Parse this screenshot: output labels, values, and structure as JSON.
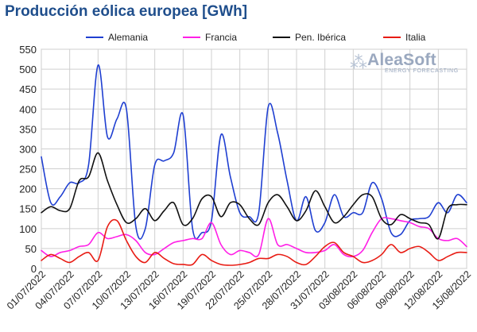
{
  "chart_data": {
    "type": "line",
    "title": "Producción eólica europea [GWh]",
    "ylim": [
      0,
      550
    ],
    "yticks": [
      0,
      50,
      100,
      150,
      200,
      250,
      300,
      350,
      400,
      450,
      500,
      550
    ],
    "x": [
      "01/07/2022",
      "02/07/2022",
      "03/07/2022",
      "04/07/2022",
      "05/07/2022",
      "06/07/2022",
      "07/07/2022",
      "08/07/2022",
      "09/07/2022",
      "10/07/2022",
      "11/07/2022",
      "12/07/2022",
      "13/07/2022",
      "14/07/2022",
      "15/07/2022",
      "16/07/2022",
      "17/07/2022",
      "18/07/2022",
      "19/07/2022",
      "20/07/2022",
      "21/07/2022",
      "22/07/2022",
      "23/07/2022",
      "24/07/2022",
      "25/07/2022",
      "26/07/2022",
      "27/07/2022",
      "28/07/2022",
      "29/07/2022",
      "30/07/2022",
      "31/07/2022",
      "01/08/2022",
      "02/08/2022",
      "03/08/2022",
      "04/08/2022",
      "05/08/2022",
      "06/08/2022",
      "07/08/2022",
      "08/08/2022",
      "09/08/2022",
      "10/08/2022",
      "11/08/2022",
      "12/08/2022",
      "13/08/2022",
      "14/08/2022",
      "15/08/2022"
    ],
    "xtick_labels": [
      "01/07/2022",
      "04/07/2022",
      "07/07/2022",
      "10/07/2022",
      "13/07/2022",
      "16/07/2022",
      "19/07/2022",
      "22/07/2022",
      "25/07/2022",
      "28/07/2022",
      "31/07/2022",
      "03/08/2022",
      "06/08/2022",
      "09/08/2022",
      "12/08/2022",
      "15/08/2022"
    ],
    "grid": true,
    "legend_position": "top",
    "series": [
      {
        "name": "Alemania",
        "color": "#1f3fd1",
        "values": [
          280,
          165,
          180,
          215,
          215,
          260,
          510,
          330,
          375,
          400,
          105,
          100,
          260,
          270,
          290,
          385,
          100,
          90,
          120,
          335,
          230,
          140,
          130,
          140,
          405,
          340,
          220,
          120,
          180,
          95,
          115,
          185,
          130,
          140,
          140,
          215,
          175,
          90,
          85,
          120,
          125,
          130,
          165,
          140,
          185,
          165
        ]
      },
      {
        "name": "Francia",
        "color": "#ff1fe6",
        "values": [
          45,
          30,
          40,
          45,
          55,
          60,
          90,
          75,
          80,
          85,
          70,
          40,
          35,
          50,
          65,
          70,
          75,
          75,
          115,
          60,
          35,
          45,
          40,
          35,
          125,
          60,
          60,
          50,
          40,
          40,
          45,
          60,
          35,
          30,
          45,
          90,
          125,
          125,
          120,
          115,
          105,
          100,
          75,
          70,
          75,
          55
        ]
      },
      {
        "name": "Pen. Ibérica",
        "color": "#111111",
        "values": [
          140,
          155,
          145,
          150,
          220,
          230,
          290,
          220,
          160,
          115,
          125,
          150,
          120,
          145,
          165,
          110,
          125,
          175,
          180,
          130,
          165,
          160,
          125,
          110,
          165,
          185,
          155,
          120,
          145,
          195,
          155,
          115,
          130,
          160,
          185,
          180,
          125,
          110,
          135,
          125,
          115,
          110,
          75,
          150,
          160,
          160
        ]
      },
      {
        "name": "Italia",
        "color": "#e81c14",
        "values": [
          20,
          35,
          25,
          15,
          30,
          40,
          20,
          105,
          120,
          70,
          30,
          15,
          40,
          25,
          12,
          10,
          10,
          35,
          20,
          10,
          8,
          10,
          15,
          25,
          25,
          35,
          30,
          15,
          10,
          30,
          55,
          65,
          40,
          30,
          15,
          20,
          35,
          60,
          40,
          50,
          55,
          40,
          20,
          30,
          40,
          40
        ]
      }
    ]
  },
  "watermark": {
    "name": "AleaSoft",
    "tagline": "ENERGY FORECASTING"
  }
}
